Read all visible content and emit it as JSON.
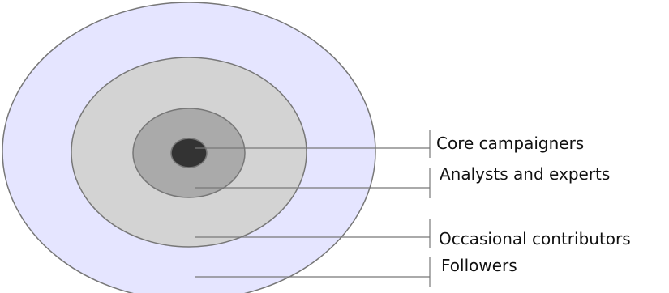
{
  "diagram": {
    "rings": [
      {
        "key": "followers",
        "label": "Followers",
        "color": "#e5e5ff"
      },
      {
        "key": "occasional",
        "label": "Occasional contributors",
        "color": "#d3d3d3"
      },
      {
        "key": "analysts",
        "label": "Analysts and experts",
        "color": "#aaaaaa"
      },
      {
        "key": "core",
        "label": "Core campaigners",
        "color": "#333333"
      }
    ],
    "stroke_color": "#777777",
    "leader_color": "#777777"
  }
}
